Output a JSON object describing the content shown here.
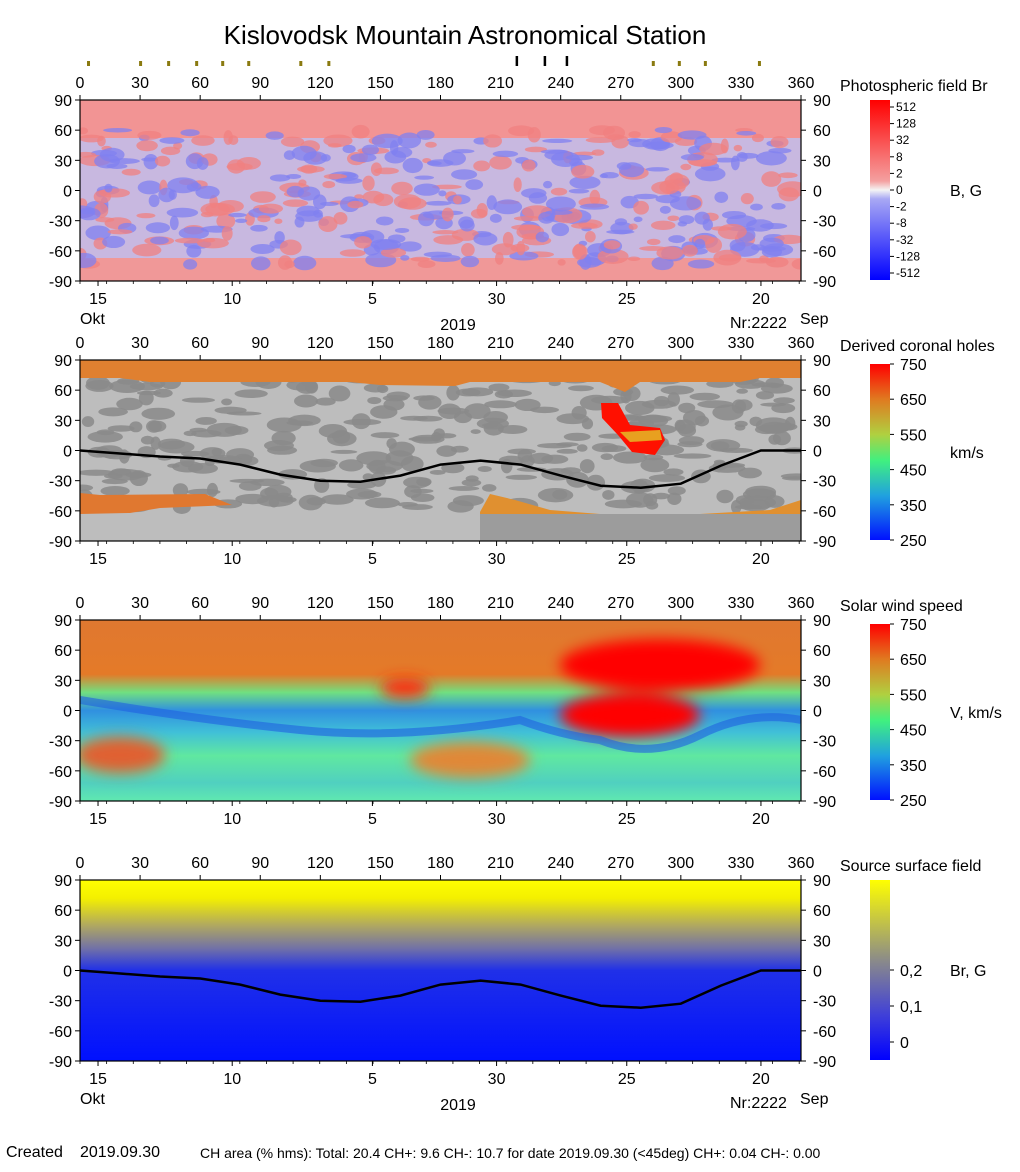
{
  "title": "Kislovodsk Mountain Astronomical Station",
  "footer": {
    "created_label": "Created",
    "created_date": "2019.09.30",
    "ch_area_text": "CH area (% hms): Total: 20.4 CH+: 9.6   CH-: 10.7 for date 2019.09.30 (<45deg) CH+: 0.04    CH-: 0.00"
  },
  "top_markers": {
    "olive_longitudes": [
      4,
      30,
      44,
      58,
      71,
      84,
      110,
      124,
      286,
      299,
      312,
      339
    ],
    "black_longitudes": [
      218,
      232,
      243
    ]
  },
  "axis_common": {
    "x_ticks": [
      0,
      30,
      60,
      90,
      120,
      150,
      180,
      210,
      240,
      270,
      300,
      330,
      360
    ],
    "y_ticks": [
      90,
      60,
      30,
      0,
      -30,
      -60,
      -90
    ],
    "xlim": [
      0,
      360
    ],
    "ylim": [
      -90,
      90
    ],
    "date_ticks": [
      {
        "label": "15",
        "lon": 9
      },
      {
        "label": "10",
        "lon": 76
      },
      {
        "label": "5",
        "lon": 146
      },
      {
        "label": "30",
        "lon": 208
      },
      {
        "label": "25",
        "lon": 273
      },
      {
        "label": "20",
        "lon": 340
      }
    ]
  },
  "chart_data": [
    {
      "type": "heatmap",
      "id": "photospheric",
      "legend_title": "Photospheric field Br",
      "colorbar_unit": "B, G",
      "colorbar_ticks": [
        "512",
        "128",
        "32",
        "8",
        "2",
        "0",
        "-2",
        "-8",
        "-32",
        "-128",
        "-512"
      ],
      "bottom_left": "Okt",
      "bottom_center": "2019",
      "bottom_right_nr": "Nr:2222",
      "bottom_right": "Sep",
      "colors": {
        "positive": "#f08080",
        "negative": "#8080f0"
      }
    },
    {
      "type": "heatmap",
      "id": "coronal_holes",
      "legend_title": "Derived coronal holes",
      "colorbar_unit": "km/s",
      "colorbar_ticks": [
        "750",
        "650",
        "550",
        "450",
        "350",
        "250"
      ],
      "neutral_line": {
        "lon": [
          0,
          20,
          40,
          60,
          80,
          100,
          120,
          140,
          160,
          180,
          200,
          220,
          240,
          260,
          280,
          300,
          320,
          340,
          360
        ],
        "lat": [
          0,
          -3,
          -6,
          -8,
          -14,
          -24,
          -30,
          -31,
          -25,
          -14,
          -10,
          -14,
          -25,
          -35,
          -37,
          -33,
          -15,
          0,
          0
        ]
      }
    },
    {
      "type": "heatmap",
      "id": "solar_wind",
      "legend_title": "Solar wind speed",
      "colorbar_unit": "V, km/s",
      "colorbar_ticks": [
        "750",
        "650",
        "550",
        "450",
        "350",
        "250"
      ]
    },
    {
      "type": "heatmap",
      "id": "source_surface",
      "legend_title": "Source surface field",
      "colorbar_unit": "Br, G",
      "colorbar_ticks": [
        "0,2",
        "0,1",
        "0"
      ],
      "bottom_left": "Okt",
      "bottom_center": "2019",
      "bottom_right_nr": "Nr:2222",
      "bottom_right": "Sep",
      "neutral_line": {
        "lon": [
          0,
          20,
          40,
          60,
          80,
          100,
          120,
          140,
          160,
          180,
          200,
          220,
          240,
          260,
          280,
          300,
          320,
          340,
          360
        ],
        "lat": [
          0,
          -3,
          -6,
          -8,
          -14,
          -24,
          -30,
          -31,
          -25,
          -14,
          -10,
          -14,
          -25,
          -35,
          -37,
          -33,
          -15,
          0,
          0
        ]
      }
    }
  ]
}
